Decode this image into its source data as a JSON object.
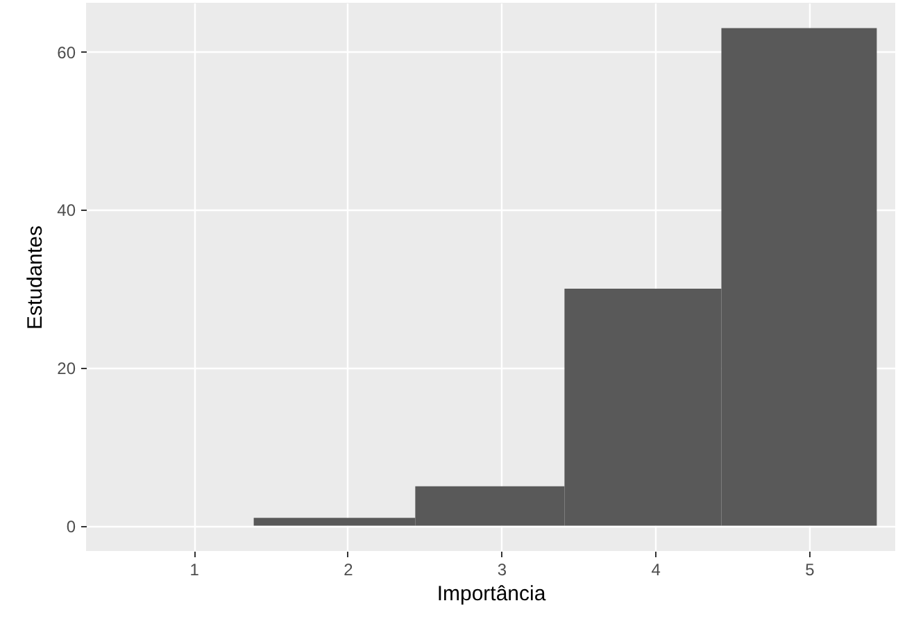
{
  "chart_data": {
    "type": "histogram",
    "xlabel": "Importância",
    "ylabel": "Estudantes",
    "bins": [
      1.39,
      2.44,
      3.41,
      4.43,
      5.44
    ],
    "values": [
      1,
      5,
      30,
      63
    ],
    "color": "#595959",
    "xlim": [
      0.3,
      5.56
    ],
    "xticks": [
      1,
      2,
      3,
      4,
      5
    ],
    "ylim": [
      -3.2,
      66.2
    ],
    "yticks": [
      0,
      20,
      40,
      60
    ],
    "grid": true
  }
}
